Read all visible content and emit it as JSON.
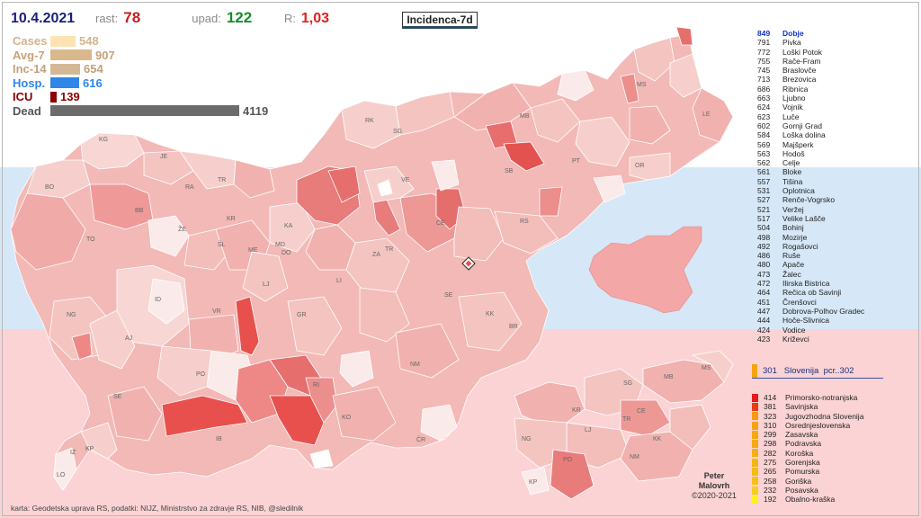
{
  "header": {
    "date": "10.4.2021",
    "rast_label": "rast:",
    "rast_value": "78",
    "upad_label": "upad:",
    "upad_value": "122",
    "r_label": "R:",
    "r_value": "1,03"
  },
  "title": "Incidenca-7d",
  "stats": [
    {
      "name": "Cases",
      "value": "548",
      "fraction": 0.133,
      "color": "#fde3b3",
      "label_color": "#d2b48c"
    },
    {
      "name": "Avg-7",
      "value": "907",
      "fraction": 0.22,
      "color": "#d9b88e",
      "label_color": "#c8a276"
    },
    {
      "name": "Inc-14",
      "value": "654",
      "fraction": 0.159,
      "color": "#d4b896",
      "label_color": "#c0a27c"
    },
    {
      "name": "Hosp.",
      "value": "616",
      "fraction": 0.15,
      "color": "#2e86e8",
      "label_color": "#2e86e8"
    },
    {
      "name": "ICU",
      "value": "139",
      "fraction": 0.034,
      "color": "#8b0000",
      "label_color": "#8b0000"
    },
    {
      "name": "Dead",
      "value": "4119",
      "fraction": 1.0,
      "color": "#6b6b6b",
      "label_color": "#555555"
    }
  ],
  "municipality_ranking": [
    {
      "value": "849",
      "name": "Dobje"
    },
    {
      "value": "791",
      "name": "Pivka"
    },
    {
      "value": "772",
      "name": "Loški Potok"
    },
    {
      "value": "755",
      "name": "Rače-Fram"
    },
    {
      "value": "745",
      "name": "Braslovče"
    },
    {
      "value": "713",
      "name": "Brezovica"
    },
    {
      "value": "686",
      "name": "Ribnica"
    },
    {
      "value": "663",
      "name": "Ljubno"
    },
    {
      "value": "624",
      "name": "Vojnik"
    },
    {
      "value": "623",
      "name": "Luče"
    },
    {
      "value": "602",
      "name": "Gornji Grad"
    },
    {
      "value": "584",
      "name": "Loška dolina"
    },
    {
      "value": "569",
      "name": "Majšperk"
    },
    {
      "value": "563",
      "name": "Hodoš"
    },
    {
      "value": "562",
      "name": "Celje"
    },
    {
      "value": "561",
      "name": "Bloke"
    },
    {
      "value": "557",
      "name": "Tišina"
    },
    {
      "value": "531",
      "name": "Oplotnica"
    },
    {
      "value": "527",
      "name": "Renče-Vogrsko"
    },
    {
      "value": "521",
      "name": "Veržej"
    },
    {
      "value": "517",
      "name": "Velike Lašče"
    },
    {
      "value": "504",
      "name": "Bohinj"
    },
    {
      "value": "498",
      "name": "Mozirje"
    },
    {
      "value": "492",
      "name": "Rogašovci"
    },
    {
      "value": "486",
      "name": "Ruše"
    },
    {
      "value": "480",
      "name": "Apače"
    },
    {
      "value": "473",
      "name": "Žalec"
    },
    {
      "value": "472",
      "name": "Ilirska Bistrica"
    },
    {
      "value": "464",
      "name": "Rečica ob Savinji"
    },
    {
      "value": "451",
      "name": "Črenšovci"
    },
    {
      "value": "447",
      "name": "Dobrova-Polhov Gradec"
    },
    {
      "value": "444",
      "name": "Hoče-Slivnica"
    },
    {
      "value": "424",
      "name": "Vodice"
    },
    {
      "value": "423",
      "name": "Križevci"
    }
  ],
  "slovenia_summary": "301   Slovenija  pcr..302",
  "regions": [
    {
      "value": "414",
      "name": "Primorsko-notranjska",
      "color": "#e41b1b"
    },
    {
      "value": "381",
      "name": "Savinjska",
      "color": "#e63a1a"
    },
    {
      "value": "323",
      "name": "Jugovzhodna Slovenija",
      "color": "#f59a12"
    },
    {
      "value": "310",
      "name": "Osrednjeslovenska",
      "color": "#f5a312"
    },
    {
      "value": "299",
      "name": "Zasavska",
      "color": "#f5a812"
    },
    {
      "value": "298",
      "name": "Podravska",
      "color": "#f5a812"
    },
    {
      "value": "282",
      "name": "Koroška",
      "color": "#f6b014"
    },
    {
      "value": "275",
      "name": "Gorenjska",
      "color": "#f6b414"
    },
    {
      "value": "265",
      "name": "Pomurska",
      "color": "#f7bb16"
    },
    {
      "value": "258",
      "name": "Goriška",
      "color": "#f7c018"
    },
    {
      "value": "232",
      "name": "Posavska",
      "color": "#f8cc1a"
    },
    {
      "value": "192",
      "name": "Obalno-kraška",
      "color": "#fbf020"
    }
  ],
  "map_labels": [
    {
      "code": "KG"
    },
    {
      "code": "JE"
    },
    {
      "code": "RA"
    },
    {
      "code": "BO"
    },
    {
      "code": "BB"
    },
    {
      "code": "TR"
    },
    {
      "code": "KR"
    },
    {
      "code": "ŽE"
    },
    {
      "code": "ŠL"
    },
    {
      "code": "KA"
    },
    {
      "code": "TO"
    },
    {
      "code": "ME"
    },
    {
      "code": "MD"
    },
    {
      "code": "DO"
    },
    {
      "code": "LJ"
    },
    {
      "code": "LI"
    },
    {
      "code": "ZA"
    },
    {
      "code": "TR"
    },
    {
      "code": "VE"
    },
    {
      "code": "CE"
    },
    {
      "code": "RK"
    },
    {
      "code": "SG"
    },
    {
      "code": "MB"
    },
    {
      "code": "SB"
    },
    {
      "code": "PT"
    },
    {
      "code": "OR"
    },
    {
      "code": "MS"
    },
    {
      "code": "LE"
    },
    {
      "code": "RS"
    },
    {
      "code": "SE"
    },
    {
      "code": "KK"
    },
    {
      "code": "BR"
    },
    {
      "code": "ID"
    },
    {
      "code": "NG"
    },
    {
      "code": "AJ"
    },
    {
      "code": "VR"
    },
    {
      "code": "GR"
    },
    {
      "code": "PO"
    },
    {
      "code": "RI"
    },
    {
      "code": "NM"
    },
    {
      "code": "KO"
    },
    {
      "code": "SE"
    },
    {
      "code": "IB"
    },
    {
      "code": "ČR"
    },
    {
      "code": "IZ"
    },
    {
      "code": "KP"
    },
    {
      "code": "LO"
    }
  ],
  "region_map_labels": [
    {
      "code": "MS"
    },
    {
      "code": "SG"
    },
    {
      "code": "MB"
    },
    {
      "code": "KR"
    },
    {
      "code": "CE"
    },
    {
      "code": "TR"
    },
    {
      "code": "LJ"
    },
    {
      "code": "NG"
    },
    {
      "code": "KK"
    },
    {
      "code": "PO"
    },
    {
      "code": "NM"
    },
    {
      "code": "KP"
    }
  ],
  "credit": {
    "line1": "Peter",
    "line2": "Malovrh",
    "line3": "©2020-2021"
  },
  "source": "karta: Geodetska uprava RS,  podatki: NIJZ, Ministrstvo za zdravje RS, NIB, @sledilnik"
}
